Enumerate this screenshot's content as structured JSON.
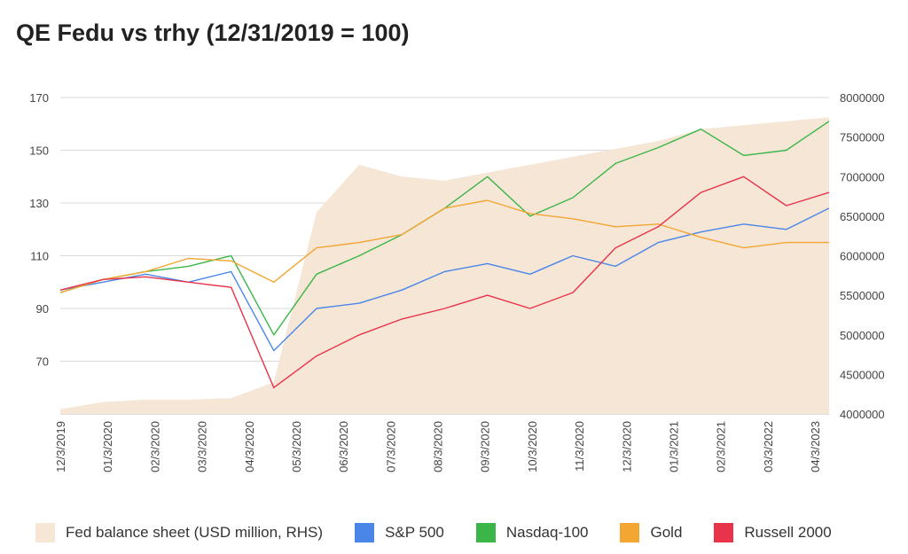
{
  "title": "QE Fedu vs trhy (12/31/2019 = 100)",
  "colors": {
    "fed_area": "#f5e6d6",
    "sp500": "#4a86e8",
    "nasdaq": "#3cb649",
    "gold": "#f4a633",
    "russell": "#e8334a",
    "grid": "#d9d9d9"
  },
  "chart_data": {
    "type": "line",
    "x_ticks": [
      "12/3/2019",
      "01/3/2020",
      "02/3/2020",
      "03/3/2020",
      "04/3/2020",
      "05/3/2020",
      "06/3/2020",
      "07/3/2020",
      "08/3/2020",
      "09/3/2020",
      "10/3/2020",
      "11/3/2020",
      "12/3/2020",
      "01/3/2021",
      "02/3/2021",
      "03/3/2022",
      "04/3/2023"
    ],
    "left_axis": {
      "ticks": [
        70,
        90,
        110,
        130,
        150,
        170
      ],
      "range": [
        50,
        170
      ]
    },
    "right_axis": {
      "ticks": [
        4000000,
        4500000,
        5000000,
        5500000,
        6000000,
        6500000,
        7000000,
        7500000,
        8000000
      ],
      "range": [
        4000000,
        8000000
      ]
    },
    "series_left": [
      {
        "name": "S&P 500",
        "color_key": "sp500",
        "values": [
          97,
          100,
          103,
          100,
          104,
          74,
          90,
          92,
          97,
          104,
          107,
          103,
          110,
          106,
          115,
          119,
          122,
          120,
          128
        ]
      },
      {
        "name": "Nasdaq-100",
        "color_key": "nasdaq",
        "values": [
          96,
          101,
          104,
          106,
          110,
          80,
          103,
          110,
          118,
          128,
          140,
          125,
          132,
          145,
          151,
          158,
          148,
          150,
          161
        ]
      },
      {
        "name": "Gold",
        "color_key": "gold",
        "values": [
          96,
          101,
          104,
          109,
          108,
          100,
          113,
          115,
          118,
          128,
          131,
          126,
          124,
          121,
          122,
          117,
          113,
          115,
          115
        ]
      },
      {
        "name": "Russell 2000",
        "color_key": "russell",
        "values": [
          97,
          101,
          102,
          100,
          98,
          60,
          72,
          80,
          86,
          90,
          95,
          90,
          96,
          113,
          121,
          134,
          140,
          129,
          134
        ]
      }
    ],
    "series_right": {
      "name": "Fed balance sheet (USD million, RHS)",
      "color_key": "fed_area",
      "values": [
        4060000,
        4150000,
        4180000,
        4180000,
        4200000,
        4400000,
        6550000,
        7150000,
        7000000,
        6950000,
        7050000,
        7150000,
        7250000,
        7350000,
        7450000,
        7600000,
        7650000,
        7700000,
        7750000
      ]
    },
    "legend": [
      "Fed balance sheet (USD million, RHS)",
      "S&P 500",
      "Nasdaq-100",
      "Gold",
      "Russell 2000"
    ],
    "legend_position": "bottom",
    "grid": true
  }
}
